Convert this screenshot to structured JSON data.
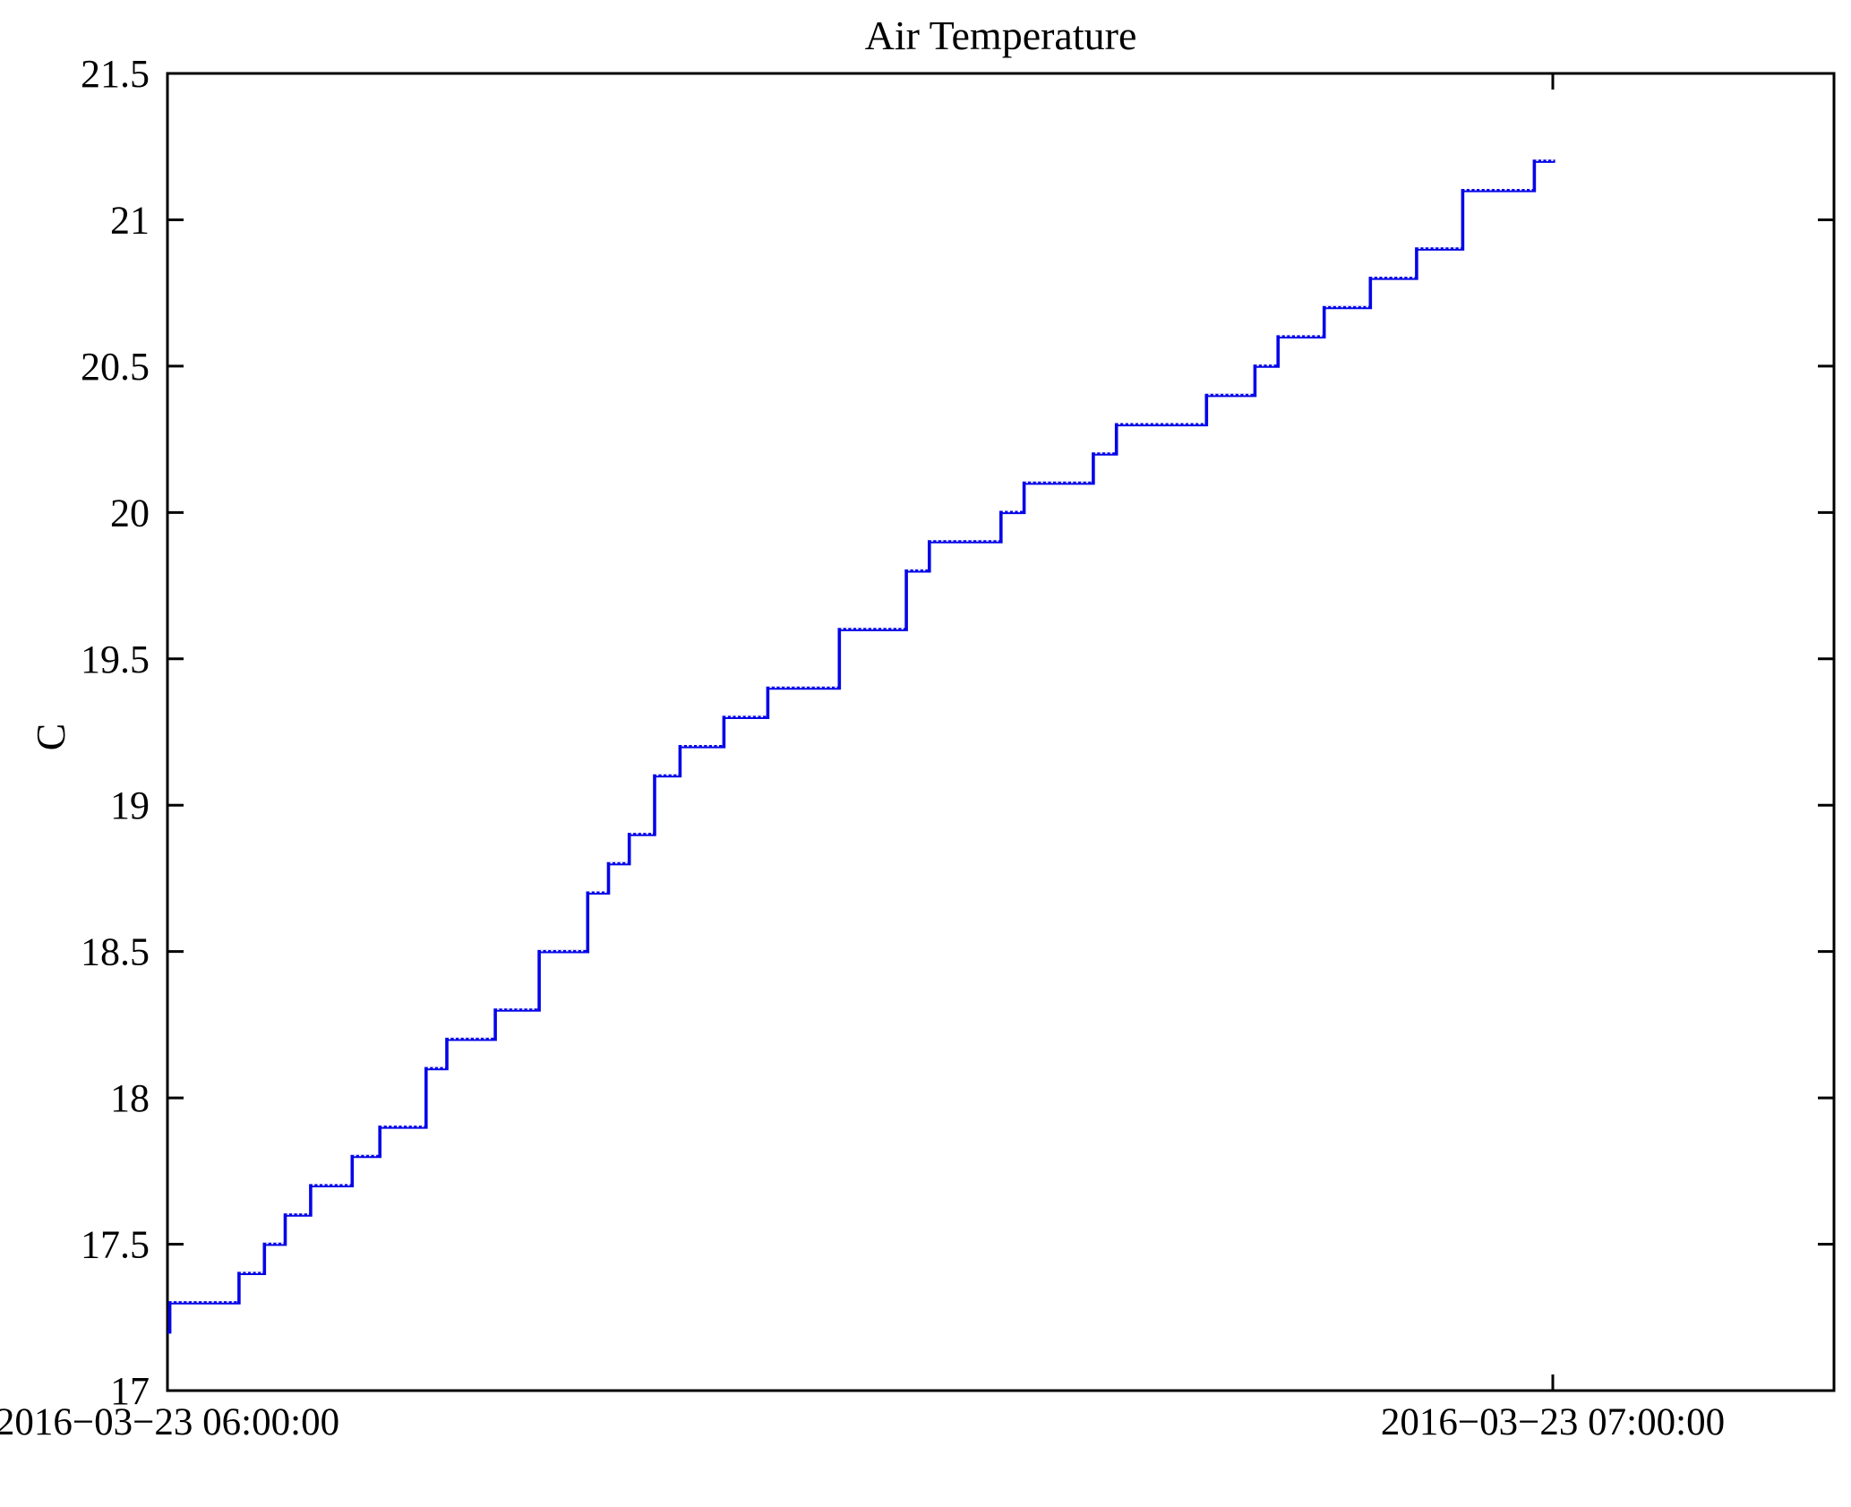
{
  "chart_data": {
    "type": "line",
    "subtype": "step",
    "title": "Air Temperature",
    "xlabel": "",
    "ylabel": "C",
    "grid": false,
    "legend": false,
    "background_color": "#ffffff",
    "axis_color": "#000000",
    "line_color": "#0505e8",
    "ylim": [
      17,
      21.5
    ],
    "y_tick_values": [
      17,
      17.5,
      18,
      18.5,
      19,
      19.5,
      20,
      20.5,
      21,
      21.5
    ],
    "y_tick_labels": [
      "17",
      "17.5",
      "18",
      "18.5",
      "19",
      "19.5",
      "20",
      "20.5",
      "21",
      "21.5"
    ],
    "x_axis": {
      "xlim_minutes": [
        0,
        72.2
      ],
      "tick_minutes": [
        0,
        60
      ],
      "tick_labels": [
        "2016−03−23 06:00:00",
        "2016−03−23 07:00:00"
      ]
    },
    "series": [
      {
        "name": "Air Temperature",
        "unit": "C",
        "note": "step_points are [minutes after 2016-03-23 06:00:00, degrees C]; value holds until next point",
        "step_points": [
          [
            0.0,
            17.2
          ],
          [
            0.1,
            17.3
          ],
          [
            3.1,
            17.4
          ],
          [
            4.2,
            17.5
          ],
          [
            5.1,
            17.6
          ],
          [
            6.2,
            17.7
          ],
          [
            8.0,
            17.8
          ],
          [
            9.2,
            17.9
          ],
          [
            11.2,
            18.1
          ],
          [
            12.1,
            18.2
          ],
          [
            14.2,
            18.3
          ],
          [
            16.1,
            18.5
          ],
          [
            18.2,
            18.7
          ],
          [
            19.1,
            18.8
          ],
          [
            20.0,
            18.9
          ],
          [
            21.1,
            19.1
          ],
          [
            22.2,
            19.2
          ],
          [
            24.1,
            19.3
          ],
          [
            26.0,
            19.4
          ],
          [
            29.1,
            19.6
          ],
          [
            32.0,
            19.8
          ],
          [
            33.0,
            19.9
          ],
          [
            36.1,
            20.0
          ],
          [
            37.1,
            20.1
          ],
          [
            40.1,
            20.2
          ],
          [
            41.1,
            20.3
          ],
          [
            45.0,
            20.4
          ],
          [
            47.1,
            20.5
          ],
          [
            48.1,
            20.6
          ],
          [
            50.1,
            20.7
          ],
          [
            52.1,
            20.8
          ],
          [
            54.1,
            20.9
          ],
          [
            56.1,
            21.1
          ],
          [
            59.2,
            21.2
          ]
        ],
        "end_minute": 60.1
      }
    ]
  }
}
